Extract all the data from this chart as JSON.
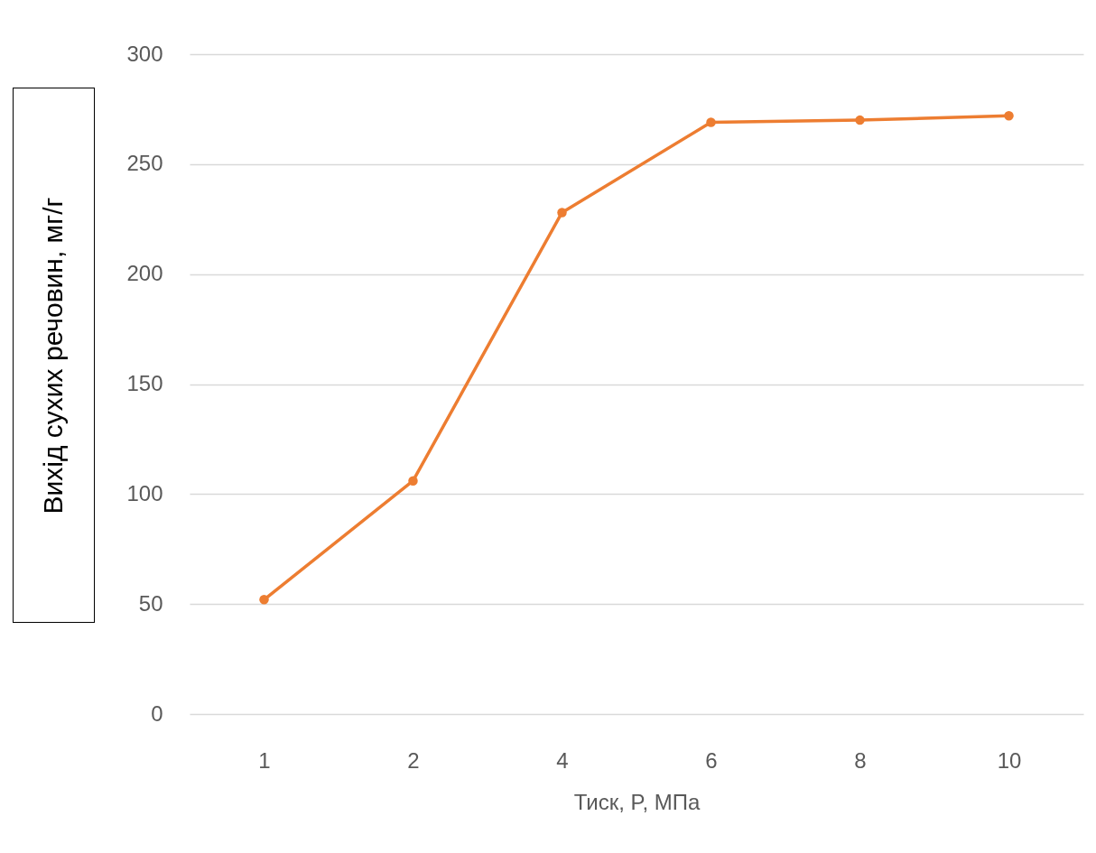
{
  "chart_data": {
    "type": "line",
    "xlabel": "Тиск, P, МПа",
    "ylabel": "Вихід сухих речовин, мг/г",
    "categories": [
      "1",
      "2",
      "4",
      "6",
      "8",
      "10"
    ],
    "series": [
      {
        "color": "#ed7d31",
        "values": [
          52,
          106,
          228,
          269,
          270,
          272
        ]
      }
    ],
    "ylim": [
      0,
      300
    ],
    "yticks": [
      0,
      50,
      100,
      150,
      200,
      250,
      300
    ],
    "grid": "y",
    "marker": "circle",
    "line_style": "solid"
  }
}
